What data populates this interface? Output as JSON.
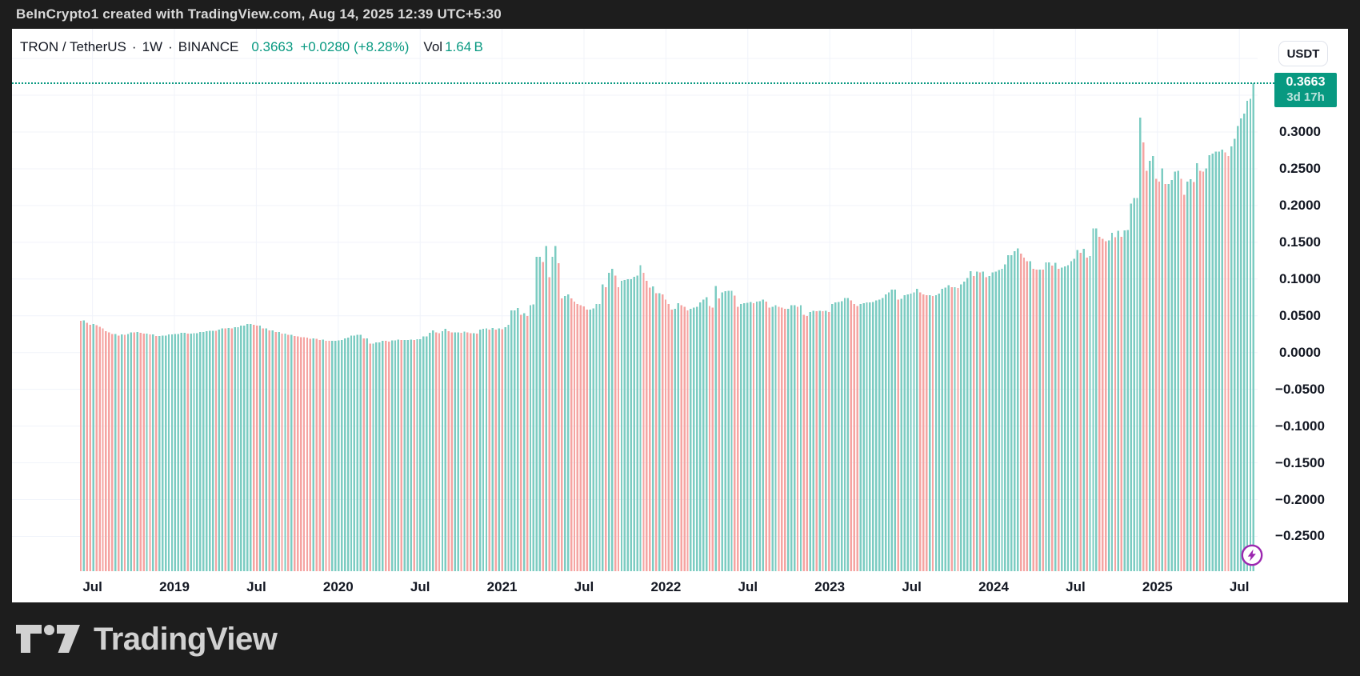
{
  "frame": {
    "attribution": "BeInCrypto1 created with TradingView.com, Aug 14, 2025 12:39 UTC+5:30",
    "footer_brand": "TradingView"
  },
  "legend": {
    "symbol": "TRON / TetherUS",
    "sep1": "·",
    "interval": "1W",
    "sep2": "·",
    "exchange": "BINANCE",
    "price": "0.3663",
    "change": "+0.0280 (+8.28%)",
    "vol_label": "Vol",
    "vol_value": "1.64 B"
  },
  "price_scale": {
    "currency_button": "USDT",
    "last_price": "0.3663",
    "countdown": "3d 17h"
  },
  "colors": {
    "up": "#7cccc2",
    "down": "#f5a4a2",
    "accent_teal": "#089981",
    "label_box": "#089981",
    "text_dark": "#131722",
    "grid": "#f0f3fa",
    "frame_bg": "#1d1d1d",
    "frame_text": "#d9d9d9",
    "icon_purple": "#9c27b0"
  },
  "chart_data": {
    "type": "bar",
    "symbol": "TRON / TetherUS",
    "interval": "1W",
    "exchange": "BINANCE",
    "last_price": 0.3663,
    "x_range": [
      2018.4287,
      2025.5874
    ],
    "ylim": [
      -0.2975,
      0.3985
    ],
    "n_bars": 374,
    "grid": true,
    "x_ticks": [
      {
        "t": 2018.5,
        "label": "Jul"
      },
      {
        "t": 2019.0,
        "label": "2019"
      },
      {
        "t": 2019.5,
        "label": "Jul"
      },
      {
        "t": 2020.0,
        "label": "2020"
      },
      {
        "t": 2020.5,
        "label": "Jul"
      },
      {
        "t": 2021.0,
        "label": "2021"
      },
      {
        "t": 2021.5,
        "label": "Jul"
      },
      {
        "t": 2022.0,
        "label": "2022"
      },
      {
        "t": 2022.5,
        "label": "Jul"
      },
      {
        "t": 2023.0,
        "label": "2023"
      },
      {
        "t": 2023.5,
        "label": "Jul"
      },
      {
        "t": 2024.0,
        "label": "2024"
      },
      {
        "t": 2024.5,
        "label": "Jul"
      },
      {
        "t": 2025.0,
        "label": "2025"
      },
      {
        "t": 2025.5,
        "label": "Jul"
      }
    ],
    "y_ticks": [
      {
        "v": 0.3,
        "label": "0.3000"
      },
      {
        "v": 0.25,
        "label": "0.2500"
      },
      {
        "v": 0.2,
        "label": "0.2000"
      },
      {
        "v": 0.15,
        "label": "0.1500"
      },
      {
        "v": 0.1,
        "label": "0.1000"
      },
      {
        "v": 0.05,
        "label": "0.0500"
      },
      {
        "v": 0.0,
        "label": "0.0000"
      },
      {
        "v": -0.05,
        "label": "−0.0500"
      },
      {
        "v": -0.1,
        "label": "−0.1000"
      },
      {
        "v": -0.15,
        "label": "−0.1500"
      },
      {
        "v": -0.2,
        "label": "−0.2000"
      },
      {
        "v": -0.25,
        "label": "−0.2500"
      }
    ],
    "y_gridlines": [
      0.4,
      0.35,
      0.3,
      0.25,
      0.2,
      0.15,
      0.1,
      0.05,
      0.0,
      -0.05,
      -0.1,
      -0.15,
      -0.2,
      -0.25
    ],
    "anchors": [
      [
        2018.429,
        0.0433
      ],
      [
        2018.448,
        0.0435
      ],
      [
        2018.468,
        0.0404
      ],
      [
        2018.487,
        0.0375
      ],
      [
        2018.507,
        0.0387
      ],
      [
        2018.526,
        0.037
      ],
      [
        2018.546,
        0.035
      ],
      [
        2018.565,
        0.033
      ],
      [
        2018.585,
        0.029
      ],
      [
        2018.624,
        0.025
      ],
      [
        2018.663,
        0.023
      ],
      [
        2018.702,
        0.024
      ],
      [
        2018.741,
        0.0275
      ],
      [
        2018.78,
        0.028
      ],
      [
        2018.819,
        0.026
      ],
      [
        2018.858,
        0.0245
      ],
      [
        2018.897,
        0.0225
      ],
      [
        2018.936,
        0.023
      ],
      [
        2018.975,
        0.0245
      ],
      [
        2019.014,
        0.0255
      ],
      [
        2019.053,
        0.027
      ],
      [
        2019.092,
        0.026
      ],
      [
        2019.131,
        0.0265
      ],
      [
        2019.17,
        0.028
      ],
      [
        2019.219,
        0.0295
      ],
      [
        2019.268,
        0.031
      ],
      [
        2019.317,
        0.033
      ],
      [
        2019.366,
        0.0345
      ],
      [
        2019.415,
        0.0365
      ],
      [
        2019.444,
        0.0386
      ],
      [
        2019.464,
        0.039
      ],
      [
        2019.483,
        0.038
      ],
      [
        2019.513,
        0.0365
      ],
      [
        2019.552,
        0.033
      ],
      [
        2019.591,
        0.03
      ],
      [
        2019.63,
        0.028
      ],
      [
        2019.669,
        0.026
      ],
      [
        2019.708,
        0.024
      ],
      [
        2019.757,
        0.022
      ],
      [
        2019.806,
        0.0205
      ],
      [
        2019.855,
        0.019
      ],
      [
        2019.904,
        0.0175
      ],
      [
        2019.953,
        0.016
      ],
      [
        2020.002,
        0.0165
      ],
      [
        2020.041,
        0.019
      ],
      [
        2020.09,
        0.023
      ],
      [
        2020.129,
        0.024
      ],
      [
        2020.168,
        0.019
      ],
      [
        2020.207,
        0.012
      ],
      [
        2020.246,
        0.014
      ],
      [
        2020.295,
        0.016
      ],
      [
        2020.344,
        0.0165
      ],
      [
        2020.393,
        0.017
      ],
      [
        2020.442,
        0.0175
      ],
      [
        2020.491,
        0.018
      ],
      [
        2020.53,
        0.022
      ],
      [
        2020.56,
        0.027
      ],
      [
        2020.582,
        0.0302
      ],
      [
        2020.602,
        0.0276
      ],
      [
        2020.621,
        0.0265
      ],
      [
        2020.641,
        0.029
      ],
      [
        2020.66,
        0.0324
      ],
      [
        2020.68,
        0.029
      ],
      [
        2020.704,
        0.0276
      ],
      [
        2020.724,
        0.0276
      ],
      [
        2020.743,
        0.027
      ],
      [
        2020.763,
        0.0287
      ],
      [
        2020.782,
        0.0276
      ],
      [
        2020.802,
        0.0265
      ],
      [
        2020.826,
        0.0265
      ],
      [
        2020.846,
        0.0258
      ],
      [
        2020.865,
        0.0313
      ],
      [
        2020.885,
        0.0324
      ],
      [
        2020.904,
        0.033
      ],
      [
        2020.924,
        0.0313
      ],
      [
        2020.948,
        0.0335
      ],
      [
        2020.968,
        0.0313
      ],
      [
        2020.987,
        0.033
      ],
      [
        2021.007,
        0.032
      ],
      [
        2021.026,
        0.0346
      ],
      [
        2021.046,
        0.0376
      ],
      [
        2021.07,
        0.0571
      ],
      [
        2021.09,
        0.0608
      ],
      [
        2021.109,
        0.0516
      ],
      [
        2021.129,
        0.0534
      ],
      [
        2021.148,
        0.0497
      ],
      [
        2021.168,
        0.0644
      ],
      [
        2021.192,
        0.0655
      ],
      [
        2021.222,
        0.13
      ],
      [
        2021.241,
        0.123
      ],
      [
        2021.261,
        0.1448
      ],
      [
        2021.28,
        0.1024
      ],
      [
        2021.3,
        0.13
      ],
      [
        2021.319,
        0.1448
      ],
      [
        2021.344,
        0.1215
      ],
      [
        2021.363,
        0.0737
      ],
      [
        2021.383,
        0.077
      ],
      [
        2021.402,
        0.079
      ],
      [
        2021.422,
        0.0737
      ],
      [
        2021.441,
        0.0693
      ],
      [
        2021.461,
        0.066
      ],
      [
        2021.485,
        0.0645
      ],
      [
        2021.505,
        0.0628
      ],
      [
        2021.524,
        0.0582
      ],
      [
        2021.544,
        0.0582
      ],
      [
        2021.563,
        0.06
      ],
      [
        2021.588,
        0.066
      ],
      [
        2021.607,
        0.0928
      ],
      [
        2021.627,
        0.0891
      ],
      [
        2021.646,
        0.1086
      ],
      [
        2021.666,
        0.1141
      ],
      [
        2021.685,
        0.1049
      ],
      [
        2021.705,
        0.0891
      ],
      [
        2021.729,
        0.0976
      ],
      [
        2021.749,
        0.0989
      ],
      [
        2021.768,
        0.0996
      ],
      [
        2021.788,
        0.1
      ],
      [
        2021.807,
        0.1031
      ],
      [
        2021.832,
        0.1049
      ],
      [
        2021.851,
        0.1186
      ],
      [
        2021.871,
        0.1086
      ],
      [
        2021.89,
        0.0976
      ],
      [
        2021.91,
        0.0884
      ],
      [
        2021.929,
        0.0902
      ],
      [
        2021.949,
        0.081
      ],
      [
        2021.973,
        0.0793
      ],
      [
        2021.993,
        0.0718
      ],
      [
        2022.012,
        0.066
      ],
      [
        2022.032,
        0.0587
      ],
      [
        2022.052,
        0.0597
      ],
      [
        2022.071,
        0.067
      ],
      [
        2022.091,
        0.0645
      ],
      [
        2022.11,
        0.062
      ],
      [
        2022.13,
        0.0571
      ],
      [
        2022.149,
        0.0597
      ],
      [
        2022.169,
        0.061
      ],
      [
        2022.193,
        0.062
      ],
      [
        2022.213,
        0.068
      ],
      [
        2022.232,
        0.0718
      ],
      [
        2022.252,
        0.0755
      ],
      [
        2022.271,
        0.0635
      ],
      [
        2022.291,
        0.061
      ],
      [
        2022.31,
        0.0903
      ],
      [
        2022.33,
        0.0737
      ],
      [
        2022.349,
        0.0818
      ],
      [
        2022.369,
        0.0836
      ],
      [
        2022.393,
        0.084
      ],
      [
        2022.413,
        0.0773
      ],
      [
        2022.432,
        0.062
      ],
      [
        2022.452,
        0.066
      ],
      [
        2022.471,
        0.067
      ],
      [
        2022.491,
        0.0675
      ],
      [
        2022.515,
        0.069
      ],
      [
        2022.535,
        0.067
      ],
      [
        2022.554,
        0.0695
      ],
      [
        2022.574,
        0.07
      ],
      [
        2022.593,
        0.0718
      ],
      [
        2022.613,
        0.0695
      ],
      [
        2022.637,
        0.061
      ],
      [
        2022.657,
        0.062
      ],
      [
        2022.676,
        0.0645
      ],
      [
        2022.696,
        0.062
      ],
      [
        2022.715,
        0.061
      ],
      [
        2022.735,
        0.0597
      ],
      [
        2022.759,
        0.0645
      ],
      [
        2022.779,
        0.0645
      ],
      [
        2022.798,
        0.062
      ],
      [
        2022.818,
        0.0645
      ],
      [
        2022.837,
        0.0516
      ],
      [
        2022.857,
        0.0497
      ],
      [
        2022.881,
        0.055
      ],
      [
        2022.901,
        0.057
      ],
      [
        2022.92,
        0.056
      ],
      [
        2022.94,
        0.057
      ],
      [
        2022.959,
        0.056
      ],
      [
        2022.979,
        0.057
      ],
      [
        2023.004,
        0.055
      ],
      [
        2023.023,
        0.066
      ],
      [
        2023.043,
        0.068
      ],
      [
        2023.062,
        0.069
      ],
      [
        2023.082,
        0.07
      ],
      [
        2023.101,
        0.0744
      ],
      [
        2023.126,
        0.0707
      ],
      [
        2023.145,
        0.0663
      ],
      [
        2023.165,
        0.0633
      ],
      [
        2023.184,
        0.0663
      ],
      [
        2023.204,
        0.067
      ],
      [
        2023.223,
        0.068
      ],
      [
        2023.243,
        0.068
      ],
      [
        2023.268,
        0.069
      ],
      [
        2023.287,
        0.0707
      ],
      [
        2023.307,
        0.0718
      ],
      [
        2023.326,
        0.0744
      ],
      [
        2023.346,
        0.0792
      ],
      [
        2023.365,
        0.0818
      ],
      [
        2023.39,
        0.0854
      ],
      [
        2023.409,
        0.0718
      ],
      [
        2023.429,
        0.0729
      ],
      [
        2023.448,
        0.078
      ],
      [
        2023.468,
        0.0792
      ],
      [
        2023.487,
        0.08
      ],
      [
        2023.512,
        0.0818
      ],
      [
        2023.531,
        0.0865
      ],
      [
        2023.551,
        0.0818
      ],
      [
        2023.57,
        0.0792
      ],
      [
        2023.59,
        0.078
      ],
      [
        2023.609,
        0.078
      ],
      [
        2023.634,
        0.077
      ],
      [
        2023.653,
        0.078
      ],
      [
        2023.673,
        0.0803
      ],
      [
        2023.692,
        0.0865
      ],
      [
        2023.712,
        0.0884
      ],
      [
        2023.731,
        0.0914
      ],
      [
        2023.756,
        0.089
      ],
      [
        2023.775,
        0.0876
      ],
      [
        2023.795,
        0.0928
      ],
      [
        2023.814,
        0.0965
      ],
      [
        2023.834,
        0.1013
      ],
      [
        2023.853,
        0.1105
      ],
      [
        2023.878,
        0.1039
      ],
      [
        2023.897,
        0.11
      ],
      [
        2023.917,
        0.109
      ],
      [
        2023.936,
        0.11
      ],
      [
        2023.956,
        0.1024
      ],
      [
        2023.975,
        0.1039
      ],
      [
        2024.0,
        0.109
      ],
      [
        2024.02,
        0.11
      ],
      [
        2024.039,
        0.1124
      ],
      [
        2024.059,
        0.1141
      ],
      [
        2024.078,
        0.1197
      ],
      [
        2024.098,
        0.1326
      ],
      [
        2024.122,
        0.1381
      ],
      [
        2024.142,
        0.1418
      ],
      [
        2024.161,
        0.1344
      ],
      [
        2024.181,
        0.1289
      ],
      [
        2024.195,
        0.1197
      ],
      [
        2024.21,
        0.124
      ],
      [
        2024.229,
        0.1241
      ],
      [
        2024.249,
        0.1141
      ],
      [
        2024.273,
        0.113
      ],
      [
        2024.293,
        0.1126
      ],
      [
        2024.312,
        0.1224
      ],
      [
        2024.332,
        0.1224
      ],
      [
        2024.351,
        0.1185
      ],
      [
        2024.371,
        0.122
      ],
      [
        2024.395,
        0.1141
      ],
      [
        2024.415,
        0.1157
      ],
      [
        2024.434,
        0.1174
      ],
      [
        2024.454,
        0.119
      ],
      [
        2024.474,
        0.124
      ],
      [
        2024.493,
        0.1274
      ],
      [
        2024.518,
        0.1395
      ],
      [
        2024.537,
        0.1359
      ],
      [
        2024.557,
        0.1414
      ],
      [
        2024.576,
        0.1289
      ],
      [
        2024.596,
        0.1311
      ],
      [
        2024.62,
        0.1689
      ],
      [
        2024.64,
        0.1576
      ],
      [
        2024.659,
        0.1547
      ],
      [
        2024.679,
        0.1513
      ],
      [
        2024.698,
        0.1528
      ],
      [
        2024.723,
        0.1628
      ],
      [
        2024.742,
        0.157
      ],
      [
        2024.762,
        0.1658
      ],
      [
        2024.781,
        0.1576
      ],
      [
        2024.801,
        0.1662
      ],
      [
        2024.82,
        0.1669
      ],
      [
        2024.835,
        0.2026
      ],
      [
        2024.859,
        0.21
      ],
      [
        2024.879,
        0.21
      ],
      [
        2024.898,
        0.3197
      ],
      [
        2024.918,
        0.286
      ],
      [
        2024.937,
        0.2475
      ],
      [
        2024.957,
        0.2608
      ],
      [
        2024.981,
        0.2671
      ],
      [
        2025.001,
        0.2365
      ],
      [
        2025.02,
        0.2328
      ],
      [
        2025.04,
        0.2505
      ],
      [
        2025.059,
        0.2291
      ],
      [
        2025.084,
        0.2345
      ],
      [
        2025.103,
        0.2461
      ],
      [
        2025.128,
        0.2475
      ],
      [
        2025.147,
        0.2365
      ],
      [
        2025.167,
        0.2148
      ],
      [
        2025.187,
        0.2328
      ],
      [
        2025.206,
        0.2357
      ],
      [
        2025.226,
        0.232
      ],
      [
        2025.245,
        0.2578
      ],
      [
        2025.265,
        0.2475
      ],
      [
        2025.284,
        0.2461
      ],
      [
        2025.304,
        0.2505
      ],
      [
        2025.323,
        0.2682
      ],
      [
        2025.343,
        0.2707
      ],
      [
        2025.367,
        0.2733
      ],
      [
        2025.387,
        0.2762
      ],
      [
        2025.406,
        0.272
      ],
      [
        2025.426,
        0.2672
      ],
      [
        2025.446,
        0.2806
      ],
      [
        2025.465,
        0.2909
      ],
      [
        2025.49,
        0.3083
      ],
      [
        2025.509,
        0.3186
      ],
      [
        2025.529,
        0.3252
      ],
      [
        2025.548,
        0.3425
      ],
      [
        2025.568,
        0.3451
      ],
      [
        2025.587,
        0.3663
      ]
    ]
  }
}
